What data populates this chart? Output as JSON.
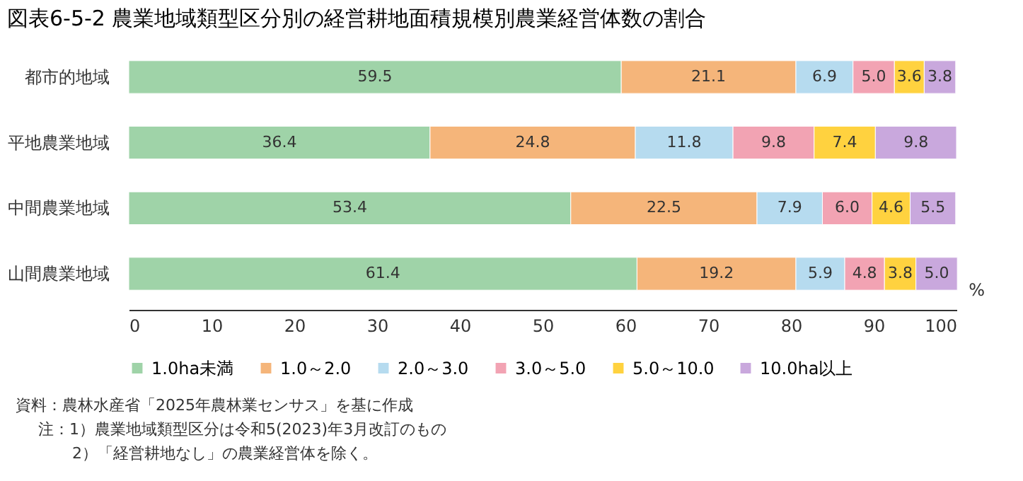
{
  "chart_data": {
    "type": "bar",
    "title": "図表6-5-2 農業地域類型区分別の経営耕地面積規模別農業経営体数の割合",
    "orientation": "horizontal",
    "stacked": true,
    "data_labels": true,
    "legend": "bottom",
    "grid": false,
    "xlabel": "%",
    "xlim": [
      0,
      100
    ],
    "xticks": [
      0,
      10,
      20,
      30,
      40,
      50,
      60,
      70,
      80,
      90,
      100
    ],
    "categories": [
      "都市的地域",
      "平地農業地域",
      "中間農業地域",
      "山間農業地域"
    ],
    "series": [
      {
        "name": "1.0ha未満",
        "color": "#9fd3a8",
        "values": [
          59.5,
          36.4,
          53.4,
          61.4
        ]
      },
      {
        "name": "1.0～2.0",
        "color": "#f5b57a",
        "values": [
          21.1,
          24.8,
          22.5,
          19.2
        ]
      },
      {
        "name": "2.0～3.0",
        "color": "#b6dbef",
        "values": [
          6.9,
          11.8,
          7.9,
          5.9
        ]
      },
      {
        "name": "3.0～5.0",
        "color": "#f2a3b3",
        "values": [
          5.0,
          9.8,
          6.0,
          4.8
        ],
        "value_labels": [
          "5.0",
          "9.8",
          "6.0",
          "4.8"
        ]
      },
      {
        "name": "5.0～10.0",
        "color": "#ffd23f",
        "values": [
          3.6,
          7.4,
          4.6,
          3.8
        ]
      },
      {
        "name": "10.0ha以上",
        "color": "#c9a8dd",
        "values": [
          3.8,
          9.8,
          5.5,
          5.0
        ],
        "value_labels": [
          "3.8",
          "9.8",
          "5.5",
          "5.0"
        ]
      }
    ],
    "annotations": [
      "資料：農林水産省「2025年農林業センサス」を基に作成",
      "注：1）農業地域類型区分は令和5(2023)年3月改訂のもの",
      "2）「経営耕地なし」の農業経営体を除く。"
    ]
  }
}
